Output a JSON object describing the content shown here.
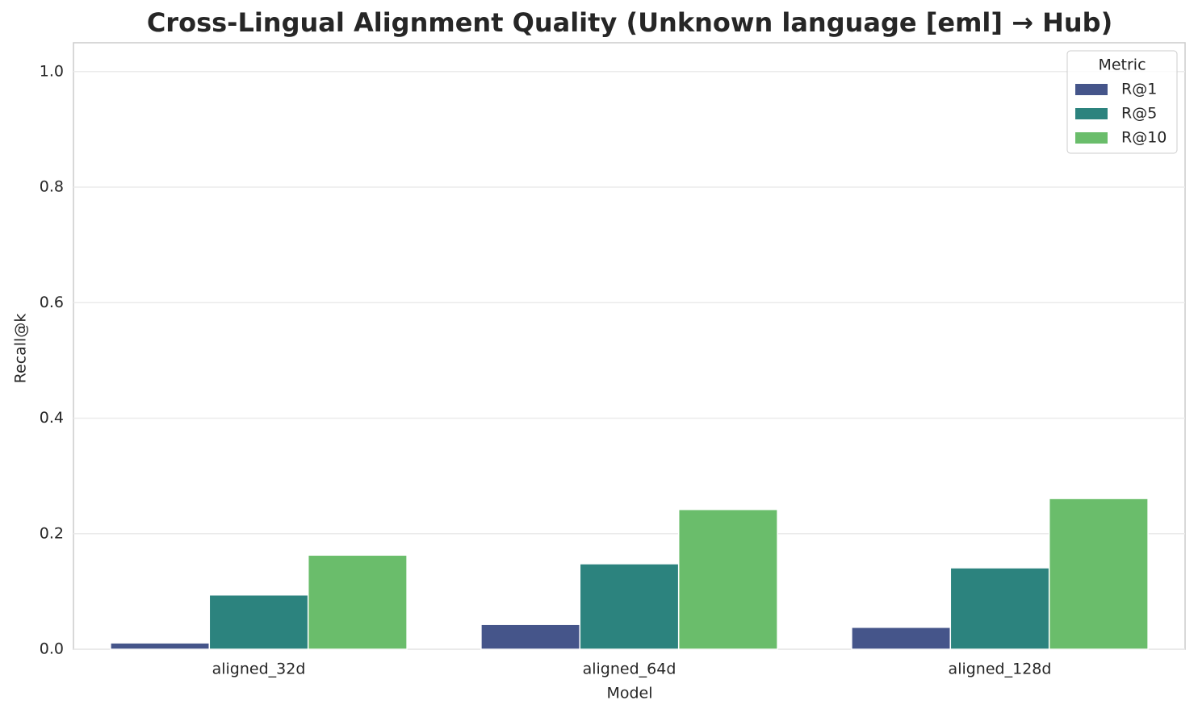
{
  "chart_data": {
    "type": "bar",
    "title": "Cross-Lingual Alignment Quality (Unknown language [eml] → Hub)",
    "x_label": "Model",
    "y_label": "Recall@k",
    "categories": [
      "aligned_32d",
      "aligned_64d",
      "aligned_128d"
    ],
    "series": [
      {
        "name": "R@1",
        "color": "#45558a",
        "values": [
          0.011,
          0.043,
          0.038
        ]
      },
      {
        "name": "R@5",
        "color": "#2c837e",
        "values": [
          0.094,
          0.148,
          0.141
        ]
      },
      {
        "name": "R@10",
        "color": "#6abd6b",
        "values": [
          0.163,
          0.242,
          0.261
        ]
      }
    ],
    "legend_title": "Metric",
    "legend": "upper right",
    "ylim": [
      0,
      1.05
    ],
    "yticks": [
      {
        "value": 0,
        "label": "0.0"
      },
      0.2,
      0.4,
      0.6,
      0.8,
      {
        "value": 1,
        "label": "1.0"
      }
    ],
    "grid": true
  }
}
